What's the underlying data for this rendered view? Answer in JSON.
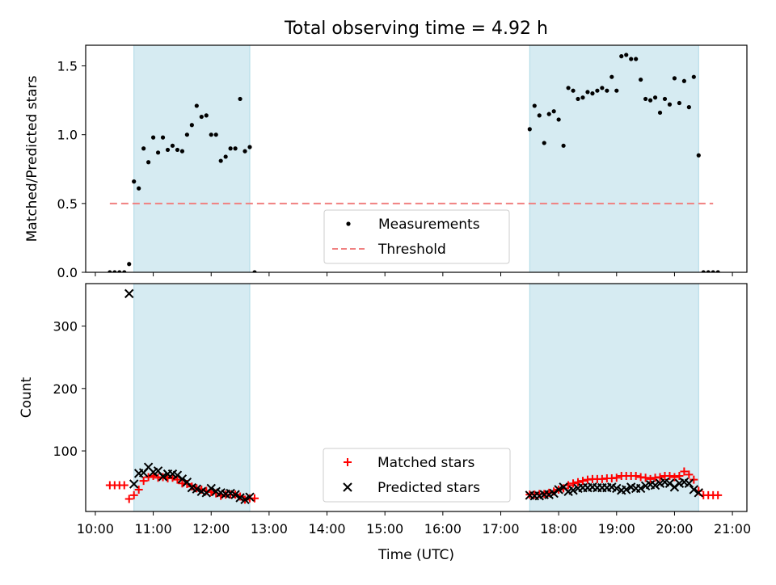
{
  "figure": {
    "title": "Total observing time = 4.92 h"
  },
  "chart_data": [
    {
      "type": "scatter",
      "ylabel": "Matched/Predicted stars",
      "xlabel": "",
      "xlim": [
        "09:50",
        "21:15"
      ],
      "ylim": [
        0,
        1.65
      ],
      "xticks": [
        "10:00",
        "11:00",
        "12:00",
        "13:00",
        "14:00",
        "15:00",
        "16:00",
        "17:00",
        "18:00",
        "19:00",
        "20:00",
        "21:00"
      ],
      "yticks": [
        "0.0",
        "0.5",
        "1.0",
        "1.5"
      ],
      "observing_windows": [
        {
          "start": "10:40",
          "end": "12:40"
        },
        {
          "start": "17:30",
          "end": "20:25"
        }
      ],
      "threshold": {
        "value": 0.5,
        "start": "10:15",
        "end": "20:40",
        "color": "#f08080"
      },
      "legend": {
        "position": "lower-center",
        "entries": [
          {
            "label": "Measurements",
            "marker": "dot",
            "color": "#000000"
          },
          {
            "label": "Threshold",
            "marker": "dashed-line",
            "color": "#f08080"
          }
        ]
      },
      "series": [
        {
          "name": "Measurements",
          "color": "#000000",
          "points": [
            [
              "10:15",
              0
            ],
            [
              "10:20",
              0
            ],
            [
              "10:25",
              0
            ],
            [
              "10:30",
              0
            ],
            [
              "10:35",
              0.06
            ],
            [
              "10:40",
              0.66
            ],
            [
              "10:45",
              0.61
            ],
            [
              "10:50",
              0.9
            ],
            [
              "10:55",
              0.8
            ],
            [
              "11:00",
              0.98
            ],
            [
              "11:05",
              0.87
            ],
            [
              "11:10",
              0.98
            ],
            [
              "11:15",
              0.89
            ],
            [
              "11:20",
              0.92
            ],
            [
              "11:25",
              0.89
            ],
            [
              "11:30",
              0.88
            ],
            [
              "11:35",
              1.0
            ],
            [
              "11:40",
              1.07
            ],
            [
              "11:45",
              1.21
            ],
            [
              "11:50",
              1.13
            ],
            [
              "11:55",
              1.14
            ],
            [
              "12:00",
              1.0
            ],
            [
              "12:05",
              1.0
            ],
            [
              "12:10",
              0.81
            ],
            [
              "12:15",
              0.84
            ],
            [
              "12:20",
              0.9
            ],
            [
              "12:25",
              0.9
            ],
            [
              "12:30",
              1.26
            ],
            [
              "12:35",
              0.88
            ],
            [
              "12:40",
              0.91
            ],
            [
              "12:45",
              0
            ],
            [
              "17:30",
              1.04
            ],
            [
              "17:35",
              1.21
            ],
            [
              "17:40",
              1.14
            ],
            [
              "17:45",
              0.94
            ],
            [
              "17:50",
              1.15
            ],
            [
              "17:55",
              1.17
            ],
            [
              "18:00",
              1.11
            ],
            [
              "18:05",
              0.92
            ],
            [
              "18:10",
              1.34
            ],
            [
              "18:15",
              1.32
            ],
            [
              "18:20",
              1.26
            ],
            [
              "18:25",
              1.27
            ],
            [
              "18:30",
              1.31
            ],
            [
              "18:35",
              1.3
            ],
            [
              "18:40",
              1.32
            ],
            [
              "18:45",
              1.34
            ],
            [
              "18:50",
              1.32
            ],
            [
              "18:55",
              1.42
            ],
            [
              "19:00",
              1.32
            ],
            [
              "19:05",
              1.57
            ],
            [
              "19:10",
              1.58
            ],
            [
              "19:15",
              1.55
            ],
            [
              "19:20",
              1.55
            ],
            [
              "19:25",
              1.4
            ],
            [
              "19:30",
              1.26
            ],
            [
              "19:35",
              1.25
            ],
            [
              "19:40",
              1.27
            ],
            [
              "19:45",
              1.16
            ],
            [
              "19:50",
              1.26
            ],
            [
              "19:55",
              1.22
            ],
            [
              "20:00",
              1.41
            ],
            [
              "20:05",
              1.23
            ],
            [
              "20:10",
              1.39
            ],
            [
              "20:15",
              1.2
            ],
            [
              "20:20",
              1.42
            ],
            [
              "20:25",
              0.85
            ],
            [
              "20:30",
              0
            ],
            [
              "20:35",
              0
            ],
            [
              "20:40",
              0
            ],
            [
              "20:45",
              0
            ]
          ]
        }
      ]
    },
    {
      "type": "scatter",
      "ylabel": "Count",
      "xlabel": "Time (UTC)",
      "xlim": [
        "09:50",
        "21:15"
      ],
      "ylim": [
        3,
        368
      ],
      "xticks": [
        "10:00",
        "11:00",
        "12:00",
        "13:00",
        "14:00",
        "15:00",
        "16:00",
        "17:00",
        "18:00",
        "19:00",
        "20:00",
        "21:00"
      ],
      "yticks": [
        "100",
        "200",
        "300"
      ],
      "observing_windows": [
        {
          "start": "10:40",
          "end": "12:40"
        },
        {
          "start": "17:30",
          "end": "20:25"
        }
      ],
      "legend": {
        "position": "lower-center",
        "entries": [
          {
            "label": "Matched stars",
            "marker": "plus",
            "color": "#ff0000"
          },
          {
            "label": "Predicted stars",
            "marker": "x",
            "color": "#000000"
          }
        ]
      },
      "series": [
        {
          "name": "Matched stars",
          "color": "#ff0000",
          "marker": "plus",
          "points": [
            [
              "10:15",
              45
            ],
            [
              "10:20",
              45
            ],
            [
              "10:25",
              45
            ],
            [
              "10:30",
              45
            ],
            [
              "10:35",
              23
            ],
            [
              "10:40",
              29
            ],
            [
              "10:45",
              38
            ],
            [
              "10:50",
              52
            ],
            [
              "10:55",
              58
            ],
            [
              "11:00",
              60
            ],
            [
              "11:05",
              57
            ],
            [
              "11:10",
              58
            ],
            [
              "11:15",
              56
            ],
            [
              "11:20",
              57
            ],
            [
              "11:25",
              54
            ],
            [
              "11:30",
              48
            ],
            [
              "11:35",
              47
            ],
            [
              "11:40",
              43
            ],
            [
              "11:45",
              40
            ],
            [
              "11:50",
              38
            ],
            [
              "11:55",
              36
            ],
            [
              "12:00",
              34
            ],
            [
              "12:05",
              32
            ],
            [
              "12:10",
              28
            ],
            [
              "12:15",
              30
            ],
            [
              "12:20",
              30
            ],
            [
              "12:25",
              30
            ],
            [
              "12:30",
              27
            ],
            [
              "12:35",
              22
            ],
            [
              "12:40",
              24
            ],
            [
              "12:45",
              24
            ],
            [
              "17:30",
              30
            ],
            [
              "17:35",
              30
            ],
            [
              "17:40",
              31
            ],
            [
              "17:45",
              31
            ],
            [
              "17:50",
              33
            ],
            [
              "17:55",
              35
            ],
            [
              "18:00",
              38
            ],
            [
              "18:05",
              40
            ],
            [
              "18:10",
              45
            ],
            [
              "18:15",
              48
            ],
            [
              "18:20",
              50
            ],
            [
              "18:25",
              52
            ],
            [
              "18:30",
              54
            ],
            [
              "18:35",
              55
            ],
            [
              "18:40",
              55
            ],
            [
              "18:45",
              55
            ],
            [
              "18:50",
              56
            ],
            [
              "18:55",
              56
            ],
            [
              "19:00",
              57
            ],
            [
              "19:05",
              60
            ],
            [
              "19:10",
              60
            ],
            [
              "19:15",
              60
            ],
            [
              "19:20",
              60
            ],
            [
              "19:25",
              58
            ],
            [
              "19:30",
              57
            ],
            [
              "19:35",
              55
            ],
            [
              "19:40",
              57
            ],
            [
              "19:45",
              58
            ],
            [
              "19:50",
              60
            ],
            [
              "19:55",
              60
            ],
            [
              "20:00",
              58
            ],
            [
              "20:05",
              60
            ],
            [
              "20:10",
              67
            ],
            [
              "20:15",
              62
            ],
            [
              "20:20",
              54
            ],
            [
              "20:25",
              36
            ],
            [
              "20:30",
              29
            ],
            [
              "20:35",
              29
            ],
            [
              "20:40",
              29
            ],
            [
              "20:45",
              29
            ]
          ]
        },
        {
          "name": "Predicted stars",
          "color": "#000000",
          "marker": "x",
          "points": [
            [
              "10:35",
              352
            ],
            [
              "10:40",
              47
            ],
            [
              "10:45",
              64
            ],
            [
              "10:50",
              65
            ],
            [
              "10:55",
              74
            ],
            [
              "11:00",
              66
            ],
            [
              "11:05",
              68
            ],
            [
              "11:10",
              59
            ],
            [
              "11:15",
              63
            ],
            [
              "11:20",
              63
            ],
            [
              "11:25",
              61
            ],
            [
              "11:30",
              55
            ],
            [
              "11:35",
              50
            ],
            [
              "11:40",
              41
            ],
            [
              "11:45",
              39
            ],
            [
              "11:50",
              35
            ],
            [
              "11:55",
              33
            ],
            [
              "12:00",
              40
            ],
            [
              "12:05",
              35
            ],
            [
              "12:10",
              33
            ],
            [
              "12:15",
              31
            ],
            [
              "12:20",
              32
            ],
            [
              "12:25",
              30
            ],
            [
              "12:30",
              25
            ],
            [
              "12:35",
              22
            ],
            [
              "12:40",
              26
            ],
            [
              "17:30",
              29
            ],
            [
              "17:35",
              28
            ],
            [
              "17:40",
              28
            ],
            [
              "17:45",
              30
            ],
            [
              "17:50",
              30
            ],
            [
              "17:55",
              32
            ],
            [
              "18:00",
              38
            ],
            [
              "18:05",
              42
            ],
            [
              "18:10",
              35
            ],
            [
              "18:15",
              37
            ],
            [
              "18:20",
              40
            ],
            [
              "18:25",
              41
            ],
            [
              "18:30",
              41
            ],
            [
              "18:35",
              42
            ],
            [
              "18:40",
              41
            ],
            [
              "18:45",
              41
            ],
            [
              "18:50",
              41
            ],
            [
              "18:55",
              42
            ],
            [
              "19:00",
              40
            ],
            [
              "19:05",
              37
            ],
            [
              "19:10",
              38
            ],
            [
              "19:15",
              42
            ],
            [
              "19:20",
              40
            ],
            [
              "19:25",
              40
            ],
            [
              "19:30",
              44
            ],
            [
              "19:35",
              46
            ],
            [
              "19:40",
              45
            ],
            [
              "19:45",
              48
            ],
            [
              "19:50",
              50
            ],
            [
              "19:55",
              48
            ],
            [
              "20:00",
              42
            ],
            [
              "20:05",
              48
            ],
            [
              "20:10",
              50
            ],
            [
              "20:15",
              48
            ],
            [
              "20:20",
              38
            ],
            [
              "20:25",
              33
            ]
          ]
        }
      ]
    }
  ]
}
